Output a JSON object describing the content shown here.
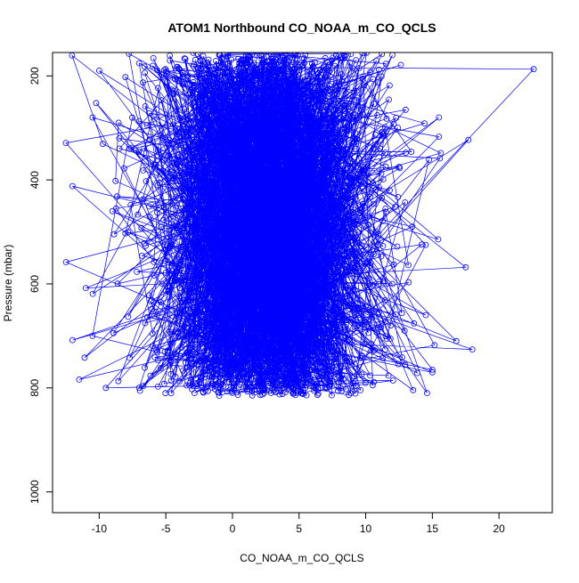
{
  "chart_data": {
    "type": "scatter",
    "title": "ATOM1 Northbound CO_NOAA_m_CO_QCLS",
    "xlabel": "CO_NOAA_m_CO_QCLS",
    "ylabel": "Pressure (mbar)",
    "xlim": [
      -13.5,
      24
    ],
    "ylim": [
      1040,
      155
    ],
    "y_reversed": true,
    "x_ticks": [
      -10,
      -5,
      0,
      5,
      10,
      15,
      20
    ],
    "y_ticks": [
      200,
      400,
      600,
      800,
      1000
    ],
    "grid": false,
    "legend": "none",
    "marker": "open-circle",
    "connected_by_lines": true,
    "series": [
      {
        "color": "#0000ff",
        "point_count": 3000,
        "x_center": 2.5,
        "x_spread_sd": 4.2,
        "y_range": [
          155,
          815
        ],
        "points": [
          [
            22.6,
            187
          ],
          [
            -12.5,
            329
          ],
          [
            -12.0,
            412
          ],
          [
            -12.0,
            708
          ],
          [
            18.0,
            726
          ],
          [
            17.7,
            323
          ],
          [
            17.5,
            568
          ],
          [
            16.8,
            710
          ],
          [
            15.5,
            280
          ],
          [
            15.5,
            317
          ],
          [
            14.6,
            810
          ],
          [
            13.0,
            265
          ],
          [
            -11.5,
            784
          ],
          [
            -10.5,
            700
          ],
          [
            -11.0,
            608
          ],
          [
            -10.0,
            190
          ],
          [
            -10.5,
            280
          ],
          [
            -9.0,
            460
          ],
          [
            -9.5,
            800
          ],
          [
            -8.5,
            320
          ],
          [
            14.5,
            525
          ],
          [
            14.5,
            660
          ],
          [
            15.0,
            770
          ],
          [
            15.0,
            765
          ],
          [
            12.5,
            375
          ],
          [
            13.5,
            490
          ],
          [
            9.5,
            185
          ],
          [
            12.0,
            160
          ],
          [
            11.8,
            420
          ],
          [
            12.0,
            600
          ]
        ]
      }
    ]
  }
}
